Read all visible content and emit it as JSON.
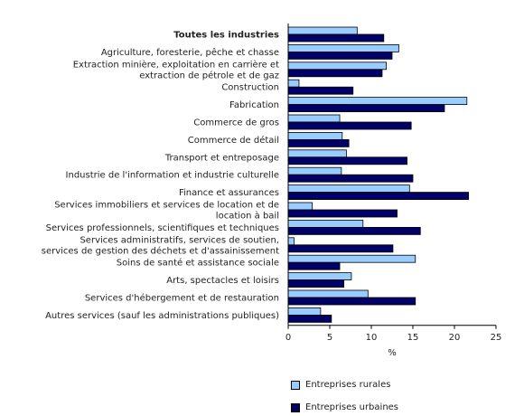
{
  "chart_data": {
    "type": "bar",
    "orientation": "horizontal",
    "xlabel": "%",
    "xlim": [
      0,
      25
    ],
    "xticks": [
      0,
      5,
      10,
      15,
      20,
      25
    ],
    "grid": false,
    "legend_position": "bottom",
    "categories": [
      {
        "lines": [
          "Toutes les industries"
        ],
        "bold": true
      },
      {
        "lines": [
          "Agriculture, foresterie, pêche et chasse"
        ]
      },
      {
        "lines": [
          "Extraction minière, exploitation en carrière et",
          "extraction de pétrole et de gaz"
        ]
      },
      {
        "lines": [
          "Construction"
        ]
      },
      {
        "lines": [
          "Fabrication"
        ]
      },
      {
        "lines": [
          "Commerce de gros"
        ]
      },
      {
        "lines": [
          "Commerce de détail"
        ]
      },
      {
        "lines": [
          "Transport et entreposage"
        ]
      },
      {
        "lines": [
          "Industrie de l'information et industrie culturelle"
        ]
      },
      {
        "lines": [
          "Finance et assurances"
        ]
      },
      {
        "lines": [
          "Services immobiliers et services de location et de",
          "location à bail"
        ]
      },
      {
        "lines": [
          "Services professionnels, scientifiques et techniques"
        ]
      },
      {
        "lines": [
          "Services administratifs, services de soutien,",
          "services de gestion des déchets et d'assainissement"
        ]
      },
      {
        "lines": [
          "Soins de santé et assistance sociale"
        ]
      },
      {
        "lines": [
          "Arts, spectacles et loisirs"
        ]
      },
      {
        "lines": [
          "Services d'hébergement et de restauration"
        ]
      },
      {
        "lines": [
          "Autres services (sauf les administrations publiques)"
        ]
      }
    ],
    "series": [
      {
        "name": "Entreprises rurales",
        "color": "#99ccff",
        "values": [
          8.3,
          13.3,
          11.8,
          1.3,
          21.5,
          6.2,
          6.5,
          7.0,
          6.4,
          14.6,
          2.9,
          9.0,
          0.7,
          15.3,
          7.6,
          9.6,
          3.9
        ]
      },
      {
        "name": "Entreprises urbaines",
        "color": "#000066",
        "values": [
          11.5,
          12.5,
          11.3,
          7.8,
          18.8,
          14.8,
          7.3,
          14.3,
          15.0,
          21.7,
          13.1,
          15.9,
          12.6,
          6.2,
          6.7,
          15.3,
          5.2
        ]
      }
    ]
  }
}
